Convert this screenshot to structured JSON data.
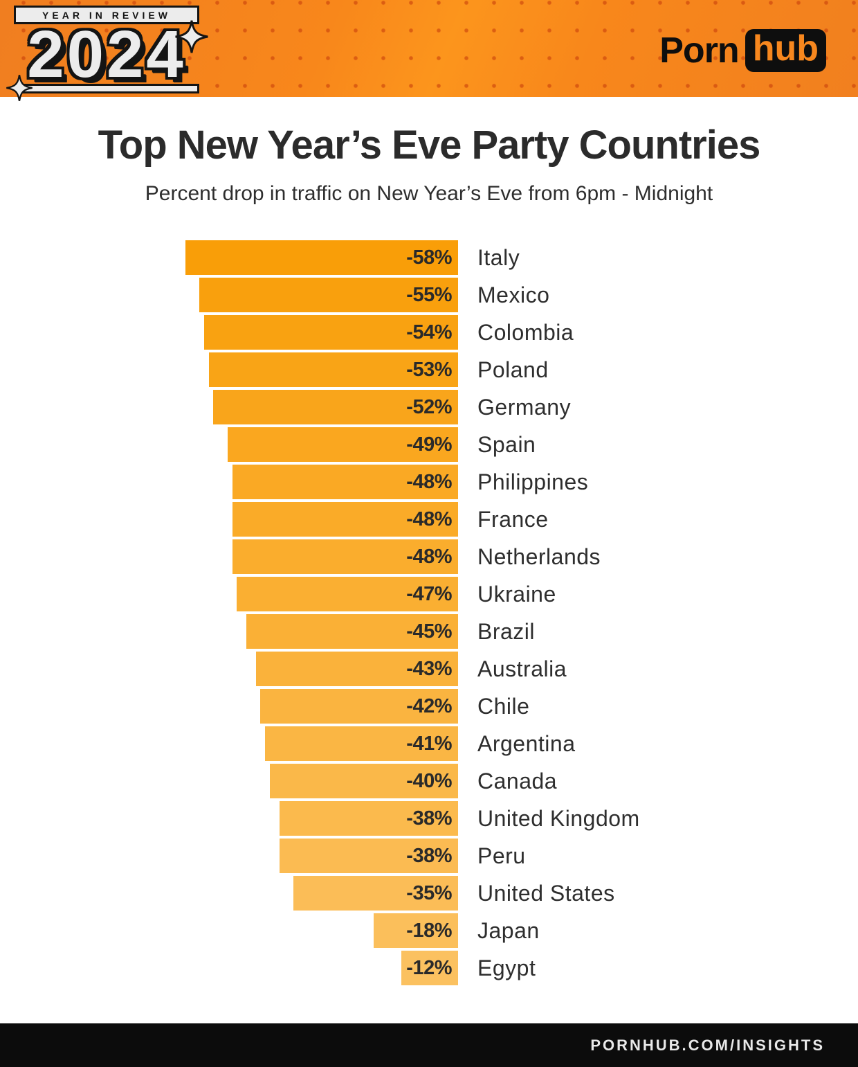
{
  "header": {
    "badge": "YEAR IN REVIEW",
    "year": "2024",
    "brand_porn": "Porn",
    "brand_hub": "hub"
  },
  "title": "Top New Year’s Eve Party Countries",
  "subtitle": "Percent drop in traffic on New Year’s Eve from 6pm - Midnight",
  "footer": {
    "url": "PORNHUB.COM/INSIGHTS"
  },
  "colors": {
    "header_orange": "#F8871B",
    "header_dot": "#C83E0A",
    "bar_color_top": "#F99E08",
    "bar_color_bottom": "#FBC160",
    "value_text": "#2A2A2A",
    "label_text": "#2E2E2E",
    "title_text": "#2B2B2B",
    "footer_bg": "#0C0C0C",
    "hub_orange": "#F7871E"
  },
  "chart_data": {
    "type": "bar",
    "orientation": "horizontal",
    "title": "Top New Year’s Eve Party Countries",
    "subtitle": "Percent drop in traffic on New Year’s Eve from 6pm - Midnight",
    "unit": "%",
    "xlim": [
      -60,
      0
    ],
    "grid": false,
    "legend": false,
    "categories": [
      "Italy",
      "Mexico",
      "Colombia",
      "Poland",
      "Germany",
      "Spain",
      "Philippines",
      "France",
      "Netherlands",
      "Ukraine",
      "Brazil",
      "Australia",
      "Chile",
      "Argentina",
      "Canada",
      "United Kingdom",
      "Peru",
      "United States",
      "Japan",
      "Egypt"
    ],
    "values": [
      -58,
      -55,
      -54,
      -53,
      -52,
      -49,
      -48,
      -48,
      -48,
      -47,
      -45,
      -43,
      -42,
      -41,
      -40,
      -38,
      -38,
      -35,
      -18,
      -12
    ],
    "value_labels": [
      "-58%",
      "-55%",
      "-54%",
      "-53%",
      "-52%",
      "-49%",
      "-48%",
      "-48%",
      "-48%",
      "-47%",
      "-45%",
      "-43%",
      "-42%",
      "-41%",
      "-40%",
      "-38%",
      "-38%",
      "-35%",
      "-18%",
      "-12%"
    ]
  }
}
